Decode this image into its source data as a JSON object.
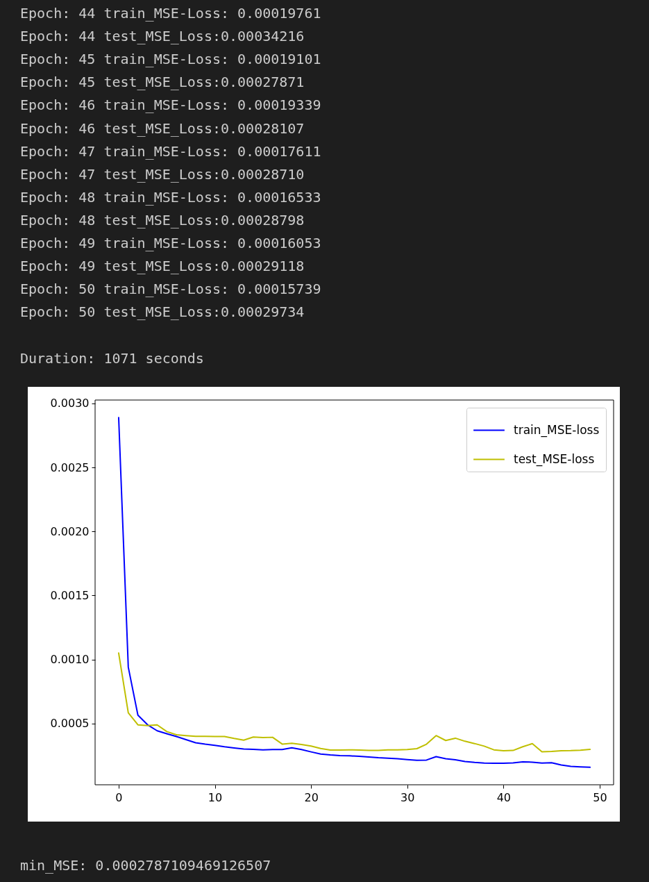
{
  "chart_data": {
    "type": "line",
    "x": [
      0,
      1,
      2,
      3,
      4,
      5,
      6,
      7,
      8,
      9,
      10,
      11,
      12,
      13,
      14,
      15,
      16,
      17,
      18,
      19,
      20,
      21,
      22,
      23,
      24,
      25,
      26,
      27,
      28,
      29,
      30,
      31,
      32,
      33,
      34,
      35,
      36,
      37,
      38,
      39,
      40,
      41,
      42,
      43,
      44,
      45,
      46,
      47,
      48,
      49
    ],
    "series": [
      {
        "name": "train_MSE-loss",
        "color": "#0000ff",
        "values": [
          0.00289,
          0.00094,
          0.000565,
          0.00049,
          0.000443,
          0.00042,
          0.000398,
          0.000374,
          0.000349,
          0.000338,
          0.000329,
          0.000318,
          0.000309,
          0.000301,
          0.000298,
          0.000294,
          0.000296,
          0.000296,
          0.00031,
          0.000296,
          0.000278,
          0.000261,
          0.000254,
          0.000249,
          0.000247,
          0.000243,
          0.000238,
          0.000232,
          0.000229,
          0.000225,
          0.000218,
          0.000212,
          0.000214,
          0.000241,
          0.000225,
          0.000216,
          0.000203,
          0.000196,
          0.000191,
          0.000189,
          0.000189,
          0.000192,
          0.0002,
          0.00019761,
          0.00019101,
          0.00019339,
          0.00017611,
          0.00016533,
          0.00016053,
          0.00015739
        ]
      },
      {
        "name": "test_MSE-loss",
        "color": "#bfbf00",
        "values": [
          0.00105,
          0.000583,
          0.000489,
          0.000483,
          0.000489,
          0.000437,
          0.000412,
          0.000405,
          0.000399,
          0.000399,
          0.000398,
          0.000398,
          0.000383,
          0.00037,
          0.000394,
          0.00039,
          0.000392,
          0.000339,
          0.000345,
          0.000336,
          0.000323,
          0.000305,
          0.000292,
          0.000292,
          0.000294,
          0.000292,
          0.00029,
          0.00029,
          0.000294,
          0.000294,
          0.000296,
          0.000303,
          0.000338,
          0.000405,
          0.000367,
          0.000385,
          0.000361,
          0.000343,
          0.000323,
          0.000294,
          0.000287,
          0.000289,
          0.000318,
          0.00034216,
          0.00027871,
          0.00028107,
          0.0002871,
          0.00028798,
          0.00029118,
          0.00029734
        ]
      }
    ],
    "xlim": [
      -2.45,
      51.45
    ],
    "xticks": [
      0,
      10,
      20,
      30,
      40,
      50
    ],
    "ylim": [
      2.1e-05,
      0.003027
    ],
    "yticks": [
      0.0005,
      {
        "value": 0.001,
        "label": "0.0010"
      },
      0.0015,
      {
        "value": 0.002,
        "label": "0.0020"
      },
      0.0025,
      {
        "value": 0.003,
        "label": "0.0030"
      }
    ],
    "legend": "top right",
    "annotations": [
      "Epoch: 44 train_MSE-Loss: 0.00019761",
      "Epoch: 44 test_MSE_Loss:0.00034216",
      "Epoch: 45 train_MSE-Loss: 0.00019101",
      "Epoch: 45 test_MSE_Loss:0.00027871",
      "Epoch: 46 train_MSE-Loss: 0.00019339",
      "Epoch: 46 test_MSE_Loss:0.00028107",
      "Epoch: 47 train_MSE-Loss: 0.00017611",
      "Epoch: 47 test_MSE_Loss:0.00028710",
      "Epoch: 48 train_MSE-Loss: 0.00016533",
      "Epoch: 48 test_MSE_Loss:0.00028798",
      "Epoch: 49 train_MSE-Loss: 0.00016053",
      "Epoch: 49 test_MSE_Loss:0.00029118",
      "Epoch: 50 train_MSE-Loss: 0.00015739",
      "Epoch: 50 test_MSE_Loss:0.00029734",
      "Duration: 1071 seconds",
      "min_MSE: 0.0002787109469126507"
    ]
  }
}
